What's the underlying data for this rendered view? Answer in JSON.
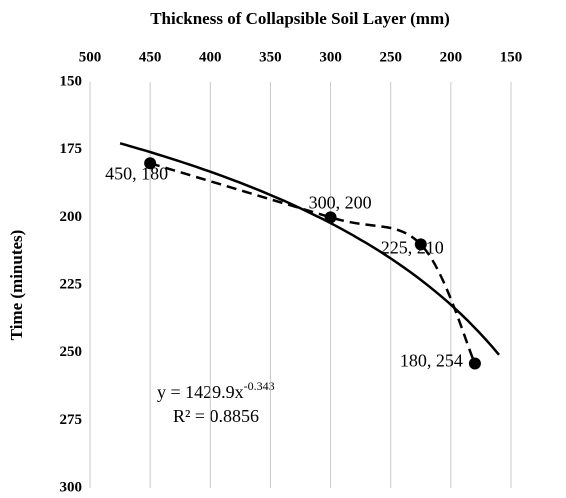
{
  "chart_data": {
    "type": "scatter",
    "title": "Thickness of Collapsible  Soil  Layer (mm)",
    "y_label": "Time (minutes)",
    "x": [
      450,
      300,
      225,
      180
    ],
    "values": [
      180,
      200,
      210,
      254
    ],
    "value_labels": [
      "450, 180",
      "300, 200",
      "225, 210",
      "180, 254"
    ],
    "color": "#000000",
    "xlim": [
      500,
      150
    ],
    "xticks": [
      500,
      450,
      400,
      350,
      300,
      250,
      200,
      150
    ],
    "ylim": [
      150,
      300
    ],
    "yticks": [
      150,
      175,
      200,
      225,
      250,
      275,
      300
    ],
    "grid": true,
    "trendline": {
      "a": 1429.9,
      "b": -0.343,
      "x_range": [
        475,
        160
      ],
      "label": "y = 1429.9x",
      "exponent_label": "-0.343",
      "r2_label": "R² = 0.8856"
    }
  }
}
